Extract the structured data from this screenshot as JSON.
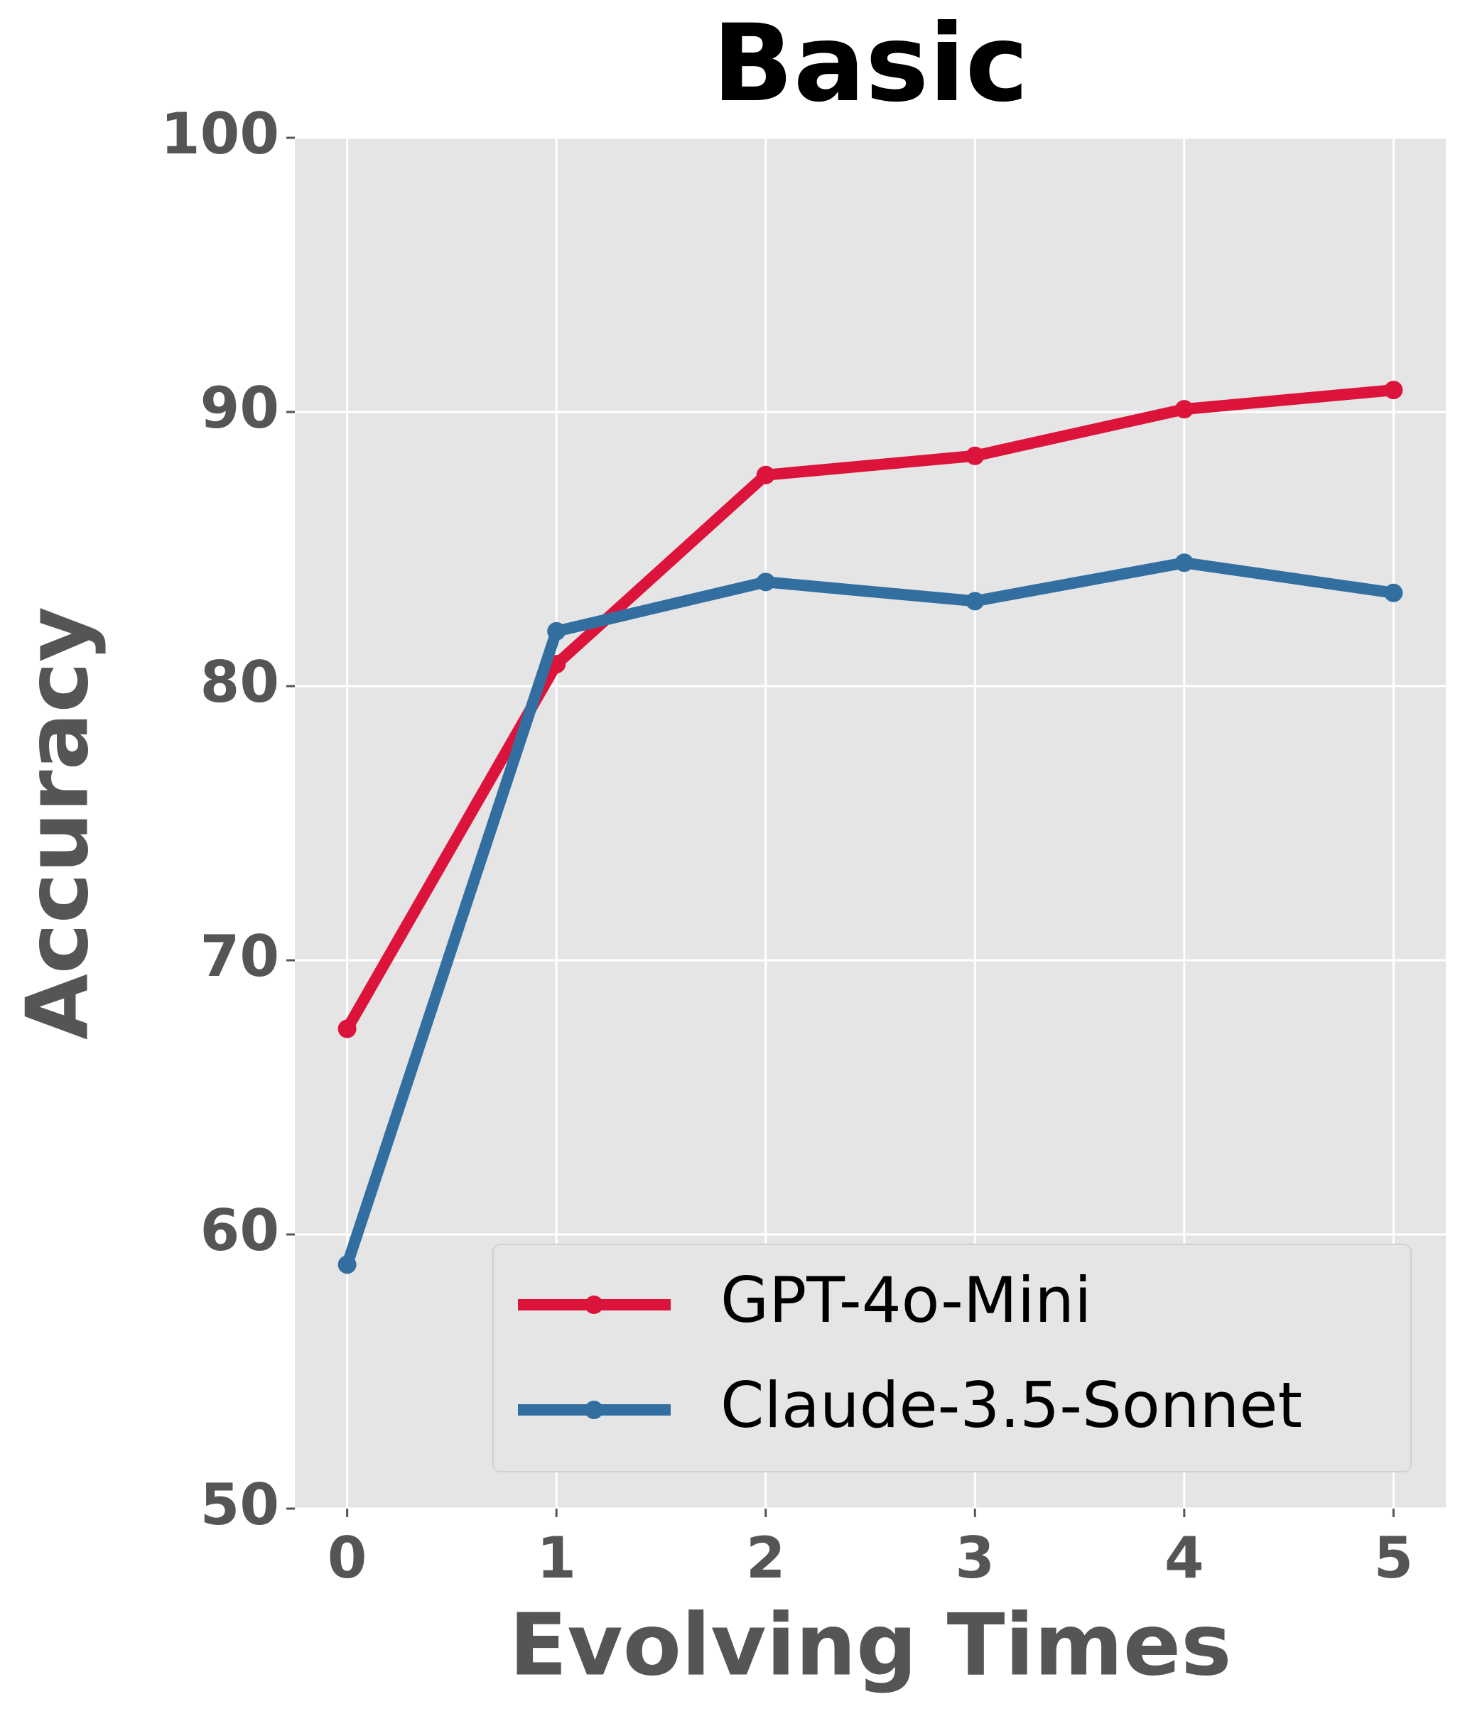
{
  "chart_data": {
    "type": "line",
    "title": "Basic",
    "xlabel": "Evolving Times",
    "ylabel": "Accuracy",
    "x": [
      0,
      1,
      2,
      3,
      4,
      5
    ],
    "series": [
      {
        "name": "GPT-4o-Mini",
        "color": "#dc143c",
        "values": [
          67.5,
          80.8,
          87.7,
          88.4,
          90.1,
          90.8
        ]
      },
      {
        "name": "Claude-3.5-Sonnet",
        "color": "#336ea0",
        "values": [
          58.9,
          82.0,
          83.8,
          83.1,
          84.5,
          83.4
        ]
      }
    ],
    "xlim": [
      -0.25,
      5.25
    ],
    "xticks": [
      0,
      1,
      2,
      3,
      4,
      5
    ],
    "ylim": [
      50,
      100
    ],
    "yticks": [
      50,
      60,
      70,
      80,
      90,
      100
    ],
    "grid": true,
    "legend": "lower right"
  }
}
